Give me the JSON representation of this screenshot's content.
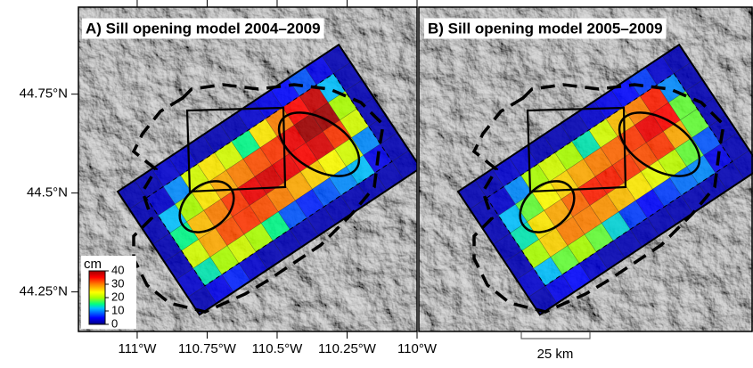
{
  "panels": [
    {
      "title": "A) Sill opening model 2004–2009",
      "cells": [
        [
          2,
          2,
          3,
          3,
          2,
          2,
          2,
          3,
          4,
          5,
          8,
          4,
          2
        ],
        [
          2,
          3,
          10,
          22,
          25,
          22,
          15,
          25,
          30,
          35,
          38,
          12,
          2
        ],
        [
          2,
          12,
          20,
          25,
          28,
          30,
          32,
          33,
          36,
          40,
          40,
          20,
          2
        ],
        [
          2,
          15,
          27,
          30,
          33,
          36,
          37,
          36,
          35,
          37,
          33,
          22,
          2
        ],
        [
          2,
          22,
          28,
          32,
          33,
          32,
          30,
          28,
          26,
          24,
          22,
          10,
          2
        ],
        [
          3,
          14,
          20,
          22,
          20,
          15,
          8,
          6,
          8,
          10,
          12,
          4,
          2
        ],
        [
          2,
          4,
          6,
          3,
          2,
          2,
          2,
          2,
          2,
          2,
          2,
          2,
          2
        ]
      ]
    },
    {
      "title": "B) Sill opening model 2005–2009",
      "cells": [
        [
          2,
          2,
          3,
          3,
          2,
          2,
          2,
          3,
          4,
          5,
          7,
          3,
          2
        ],
        [
          2,
          3,
          10,
          20,
          22,
          20,
          14,
          22,
          27,
          30,
          34,
          10,
          2
        ],
        [
          2,
          12,
          18,
          24,
          26,
          28,
          30,
          31,
          33,
          36,
          35,
          18,
          2
        ],
        [
          2,
          14,
          25,
          28,
          31,
          34,
          34,
          33,
          32,
          33,
          28,
          18,
          2
        ],
        [
          2,
          20,
          26,
          30,
          30,
          29,
          27,
          25,
          23,
          21,
          18,
          8,
          2
        ],
        [
          3,
          12,
          18,
          20,
          18,
          13,
          7,
          5,
          7,
          9,
          10,
          4,
          2
        ],
        [
          2,
          4,
          5,
          3,
          2,
          2,
          2,
          2,
          2,
          2,
          2,
          2,
          2
        ]
      ]
    }
  ],
  "map": {
    "xlim": [
      -111.21,
      -110.0
    ],
    "ylim": [
      44.15,
      44.97
    ],
    "xticks": [
      {
        "value": -111,
        "label": "111°W"
      },
      {
        "value": -110.75,
        "label": "110.75°W"
      },
      {
        "value": -110.5,
        "label": "110.5°W"
      },
      {
        "value": -110.25,
        "label": "110.25°W"
      },
      {
        "value": -110,
        "label": "110°W"
      }
    ],
    "yticks": [
      {
        "value": 44.75,
        "label": "44.75°N"
      },
      {
        "value": 44.5,
        "label": "44.5°N"
      },
      {
        "value": 44.25,
        "label": "44.25°N"
      }
    ]
  },
  "colorbar": {
    "label": "cm",
    "lim": [
      0,
      40
    ],
    "ticks": [
      0,
      10,
      20,
      30,
      40
    ]
  },
  "scale_bar": {
    "label": "25 km"
  }
}
